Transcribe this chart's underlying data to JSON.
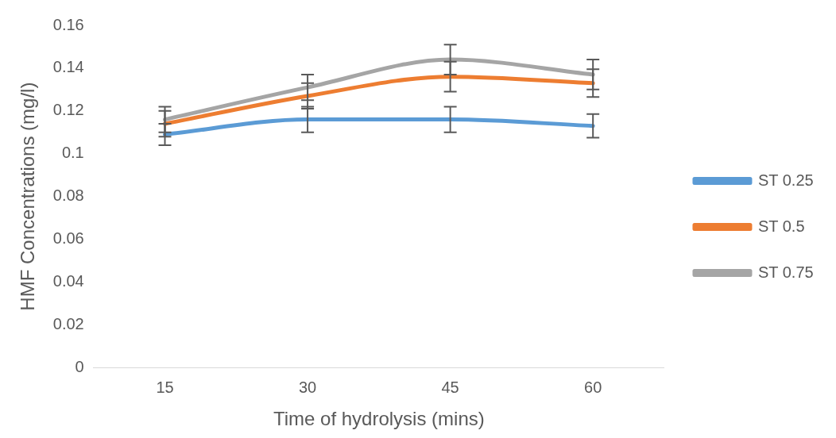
{
  "chart_data": {
    "type": "line",
    "xlabel": "Time of hydrolysis (mins)",
    "ylabel": "HMF Concentrations (mg/l)",
    "categories": [
      "15",
      "30",
      "45",
      "60"
    ],
    "series": [
      {
        "name": "ST 0.25",
        "color": "#5b9bd5",
        "values": [
          0.109,
          0.116,
          0.116,
          0.113
        ],
        "errors": [
          0.005,
          0.006,
          0.006,
          0.0055
        ]
      },
      {
        "name": "ST 0.5",
        "color": "#ed7d31",
        "values": [
          0.114,
          0.127,
          0.136,
          0.133
        ],
        "errors": [
          0.006,
          0.006,
          0.007,
          0.0065
        ]
      },
      {
        "name": "ST 0.75",
        "color": "#a5a5a5",
        "values": [
          0.116,
          0.131,
          0.144,
          0.137
        ],
        "errors": [
          0.006,
          0.006,
          0.007,
          0.007
        ]
      }
    ],
    "ylim": [
      0,
      0.16
    ],
    "yticks": [
      0,
      0.02,
      0.04,
      0.06,
      0.08,
      0.1,
      0.12,
      0.14,
      0.16
    ],
    "grid": false,
    "legend": "right",
    "marker": "none",
    "line_style": "solid"
  }
}
